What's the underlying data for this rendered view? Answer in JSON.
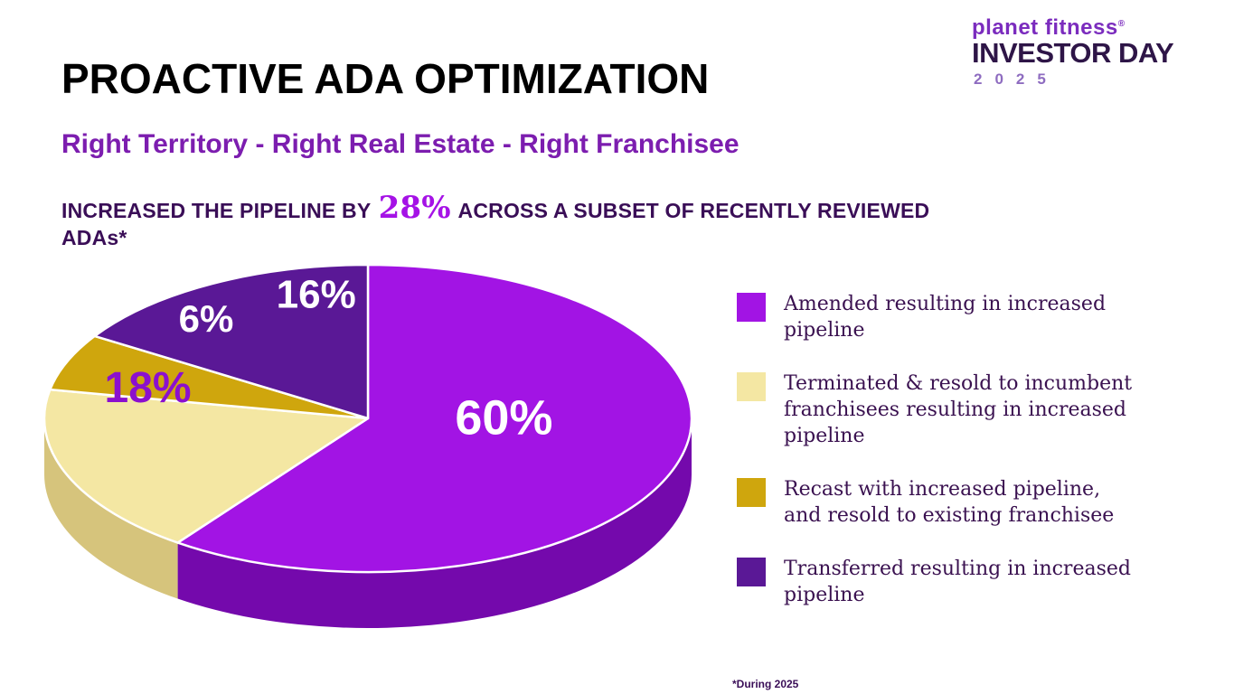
{
  "slide": {
    "title": "PROACTIVE ADA OPTIMIZATION",
    "subtitle": "Right Territory - Right Real Estate - Right Franchisee",
    "statement_prefix": "INCREASED THE PIPELINE BY ",
    "statement_highlight": "28%",
    "statement_suffix": " ACROSS A SUBSET OF RECENTLY REVIEWED ADAs*",
    "footnote": "*During 2025"
  },
  "logo": {
    "brand": "planet fitness",
    "registered": "®",
    "event": "INVESTOR DAY",
    "year": "2025"
  },
  "chart_data": {
    "type": "pie",
    "style": "3d",
    "title": "",
    "start_angle_deg": 0,
    "direction": "clockwise",
    "legend_position": "right",
    "categories": [
      "Amended resulting in increased pipeline",
      "Terminated & resold to incumbent franchisees resulting in increased pipeline",
      "Recast with increased pipeline, and resold to existing franchisee",
      "Transferred resulting in increased pipeline"
    ],
    "values": [
      60,
      18,
      6,
      16
    ],
    "value_labels": [
      "60%",
      "18%",
      "6%",
      "16%"
    ],
    "colors": [
      "#A214E4",
      "#F4E7A3",
      "#CFA60D",
      "#5A1896"
    ],
    "side_colors": [
      "#7409AC",
      "#D6C47C",
      "#9A7B08",
      "#3F1269"
    ],
    "label_colors": [
      "#FFFFFF",
      "#8B10CE",
      "#FFFFFF",
      "#FFFFFF"
    ]
  },
  "legend": {
    "items": [
      {
        "label": "Amended resulting in increased\npipeline",
        "color": "#A214E4"
      },
      {
        "label": "Terminated & resold to incumbent\nfranchisees resulting in increased\npipeline",
        "color": "#F4E7A3"
      },
      {
        "label": "Recast with increased pipeline,\nand resold to existing franchisee",
        "color": "#CFA60D"
      },
      {
        "label": "Transferred resulting in increased\npipeline",
        "color": "#5A1896"
      }
    ]
  }
}
